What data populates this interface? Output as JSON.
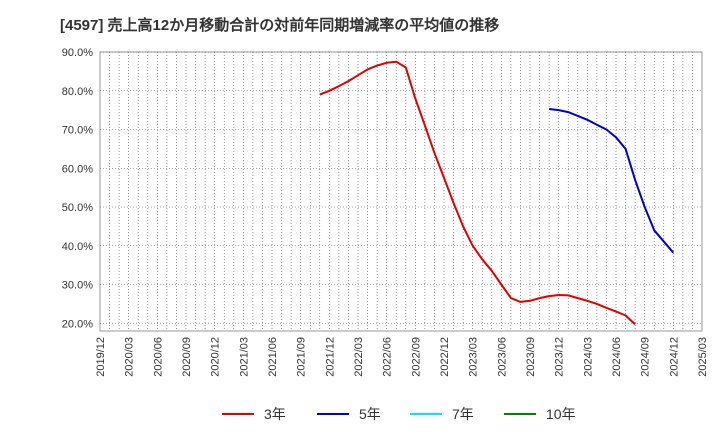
{
  "chart_data": {
    "type": "line",
    "title": "[4597]  売上高12か月移動合計の対前年同期増減率の平均値の推移",
    "xlabel": "",
    "ylabel": "",
    "ylim": [
      18,
      90
    ],
    "yticks": [
      20,
      30,
      40,
      50,
      60,
      70,
      80,
      90
    ],
    "ytick_labels": [
      "20.0%",
      "30.0%",
      "40.0%",
      "50.0%",
      "60.0%",
      "70.0%",
      "80.0%",
      "90.0%"
    ],
    "xlim": [
      "2019/12",
      "2025/03"
    ],
    "xtick_labels": [
      "2019/12",
      "2020/03",
      "2020/06",
      "2020/09",
      "2020/12",
      "2021/03",
      "2021/06",
      "2021/09",
      "2021/12",
      "2022/03",
      "2022/06",
      "2022/09",
      "2022/12",
      "2023/03",
      "2023/06",
      "2023/09",
      "2023/12",
      "2024/03",
      "2024/06",
      "2024/09",
      "2024/12",
      "2025/03"
    ],
    "grid": true,
    "legend_position": "bottom",
    "series": [
      {
        "name": "3年",
        "color": "#dd0000",
        "points": [
          [
            "2021/11",
            79.0
          ],
          [
            "2021/12",
            80.0
          ],
          [
            "2022/01",
            81.2
          ],
          [
            "2022/02",
            82.5
          ],
          [
            "2022/03",
            84.0
          ],
          [
            "2022/04",
            85.5
          ],
          [
            "2022/05",
            86.5
          ],
          [
            "2022/06",
            87.2
          ],
          [
            "2022/07",
            87.5
          ],
          [
            "2022/08",
            86.0
          ],
          [
            "2022/09",
            78.0
          ],
          [
            "2022/10",
            71.0
          ],
          [
            "2022/11",
            64.0
          ],
          [
            "2022/12",
            57.5
          ],
          [
            "2023/01",
            51.0
          ],
          [
            "2023/02",
            45.0
          ],
          [
            "2023/03",
            40.0
          ],
          [
            "2023/04",
            36.5
          ],
          [
            "2023/05",
            33.5
          ],
          [
            "2023/06",
            30.0
          ],
          [
            "2023/07",
            26.5
          ],
          [
            "2023/08",
            25.5
          ],
          [
            "2023/09",
            25.8
          ],
          [
            "2023/10",
            26.5
          ],
          [
            "2023/11",
            27.0
          ],
          [
            "2023/12",
            27.3
          ],
          [
            "2024/01",
            27.2
          ],
          [
            "2024/02",
            26.5
          ],
          [
            "2024/03",
            25.8
          ],
          [
            "2024/04",
            25.0
          ],
          [
            "2024/05",
            24.0
          ],
          [
            "2024/06",
            23.0
          ],
          [
            "2024/07",
            22.0
          ],
          [
            "2024/08",
            19.7
          ]
        ]
      },
      {
        "name": "5年",
        "color": "#0000cc",
        "points": [
          [
            "2023/11",
            75.3
          ],
          [
            "2023/12",
            75.0
          ],
          [
            "2024/01",
            74.5
          ],
          [
            "2024/02",
            73.5
          ],
          [
            "2024/03",
            72.5
          ],
          [
            "2024/04",
            71.2
          ],
          [
            "2024/05",
            70.0
          ],
          [
            "2024/06",
            68.0
          ],
          [
            "2024/07",
            65.0
          ],
          [
            "2024/08",
            57.0
          ],
          [
            "2024/09",
            50.0
          ],
          [
            "2024/10",
            44.0
          ],
          [
            "2024/12",
            38.2
          ]
        ]
      },
      {
        "name": "7年",
        "color": "#00e5ee",
        "points": []
      },
      {
        "name": "10年",
        "color": "#008000",
        "points": []
      }
    ]
  }
}
